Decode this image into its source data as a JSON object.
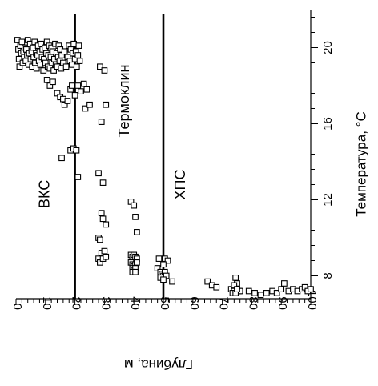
{
  "chart_data": {
    "type": "scatter",
    "orientation": "rotated",
    "xlabel": "Глубина, м",
    "ylabel": "Температура, °C",
    "x_range": [
      0,
      100
    ],
    "y_range": [
      6.8,
      22
    ],
    "x_ticks": [
      0,
      10,
      20,
      30,
      40,
      50,
      60,
      70,
      80,
      90,
      100
    ],
    "y_ticks": [
      8,
      12,
      16,
      20
    ],
    "y_axis_position": "right",
    "grid": false,
    "marker": "open-square",
    "colors": {
      "line": "#000000",
      "marker": "#000000",
      "background": "#ffffff"
    },
    "vertical_lines": [
      20,
      50
    ],
    "region_labels": [
      {
        "text": "ВКС",
        "x": 10,
        "y": 12.3
      },
      {
        "text": "Термоклин",
        "x": 37,
        "y": 17.2
      },
      {
        "text": "ХПС",
        "x": 56,
        "y": 12.8
      }
    ],
    "points": [
      [
        0.5,
        20.4
      ],
      [
        0.8,
        19.9
      ],
      [
        1.0,
        19.4
      ],
      [
        1.2,
        19.0
      ],
      [
        1.5,
        20.1
      ],
      [
        1.8,
        19.7
      ],
      [
        2.0,
        20.3
      ],
      [
        2.3,
        19.2
      ],
      [
        2.5,
        19.8
      ],
      [
        2.8,
        19.5
      ],
      [
        3.0,
        20.0
      ],
      [
        3.3,
        19.3
      ],
      [
        3.5,
        19.9
      ],
      [
        3.8,
        19.6
      ],
      [
        4.0,
        20.4
      ],
      [
        4.3,
        19.1
      ],
      [
        4.5,
        19.7
      ],
      [
        4.8,
        20.2
      ],
      [
        5.0,
        19.4
      ],
      [
        5.3,
        19.8
      ],
      [
        5.5,
        19.0
      ],
      [
        5.8,
        20.0
      ],
      [
        6.0,
        19.5
      ],
      [
        6.3,
        20.3
      ],
      [
        6.5,
        19.2
      ],
      [
        6.8,
        19.7
      ],
      [
        7.0,
        18.9
      ],
      [
        7.3,
        19.6
      ],
      [
        7.5,
        20.1
      ],
      [
        7.8,
        19.3
      ],
      [
        8.0,
        19.8
      ],
      [
        8.3,
        19.1
      ],
      [
        8.5,
        20.2
      ],
      [
        8.8,
        19.5
      ],
      [
        9.0,
        19.9
      ],
      [
        9.3,
        18.8
      ],
      [
        9.5,
        19.4
      ],
      [
        9.8,
        20.0
      ],
      [
        10.0,
        19.2
      ],
      [
        10.3,
        19.7
      ],
      [
        10.5,
        20.3
      ],
      [
        10.8,
        19.0
      ],
      [
        11.0,
        19.6
      ],
      [
        11.3,
        20.1
      ],
      [
        11.5,
        18.9
      ],
      [
        11.8,
        19.5
      ],
      [
        12.0,
        20.0
      ],
      [
        12.3,
        19.2
      ],
      [
        12.5,
        19.8
      ],
      [
        12.8,
        18.8
      ],
      [
        13.0,
        19.4
      ],
      [
        13.3,
        20.2
      ],
      [
        13.5,
        19.1
      ],
      [
        13.8,
        19.7
      ],
      [
        14.0,
        19.0
      ],
      [
        14.3,
        19.5
      ],
      [
        14.5,
        20.1
      ],
      [
        14.8,
        19.3
      ],
      [
        15.0,
        19.9
      ],
      [
        15.3,
        18.9
      ],
      [
        15.5,
        19.6
      ],
      [
        16.0,
        19.2
      ],
      [
        16.5,
        19.8
      ],
      [
        17.0,
        19.0
      ],
      [
        17.5,
        19.5
      ],
      [
        18.0,
        20.1
      ],
      [
        18.3,
        19.3
      ],
      [
        18.6,
        19.9
      ],
      [
        19.0,
        19.1
      ],
      [
        19.3,
        19.7
      ],
      [
        19.6,
        20.2
      ],
      [
        20.0,
        19.4
      ],
      [
        20.3,
        19.8
      ],
      [
        20.6,
        19.0
      ],
      [
        21.0,
        19.6
      ],
      [
        21.3,
        20.1
      ],
      [
        21.6,
        19.3
      ],
      [
        10.5,
        18.3
      ],
      [
        11.5,
        18.0
      ],
      [
        12.5,
        18.2
      ],
      [
        14.0,
        17.6
      ],
      [
        15.0,
        17.4
      ],
      [
        16.0,
        17.3
      ],
      [
        16.5,
        17.0
      ],
      [
        17.5,
        17.2
      ],
      [
        18.5,
        17.8
      ],
      [
        19.0,
        18.0
      ],
      [
        20.0,
        17.5
      ],
      [
        21.0,
        18.0
      ],
      [
        22.0,
        17.7
      ],
      [
        23.0,
        18.1
      ],
      [
        24.0,
        17.8
      ],
      [
        23.5,
        16.8
      ],
      [
        25.0,
        17.0
      ],
      [
        15.5,
        14.2
      ],
      [
        18.5,
        14.6
      ],
      [
        19.5,
        14.7
      ],
      [
        20.5,
        14.6
      ],
      [
        21.0,
        13.2
      ],
      [
        28.5,
        19.0
      ],
      [
        30.0,
        18.8
      ],
      [
        30.5,
        17.0
      ],
      [
        29.0,
        16.1
      ],
      [
        28.0,
        13.4
      ],
      [
        29.5,
        12.9
      ],
      [
        29.0,
        11.3
      ],
      [
        29.5,
        11.0
      ],
      [
        30.5,
        10.7
      ],
      [
        28.0,
        10.0
      ],
      [
        28.5,
        9.9
      ],
      [
        29.0,
        9.2
      ],
      [
        30.0,
        9.3
      ],
      [
        28.0,
        8.9
      ],
      [
        28.5,
        8.7
      ],
      [
        29.5,
        8.9
      ],
      [
        30.5,
        9.0
      ],
      [
        39.0,
        11.9
      ],
      [
        40.0,
        11.7
      ],
      [
        40.5,
        11.1
      ],
      [
        41.0,
        10.3
      ],
      [
        39.0,
        9.1
      ],
      [
        39.5,
        9.0
      ],
      [
        40.0,
        9.1
      ],
      [
        40.5,
        9.0
      ],
      [
        41.0,
        8.9
      ],
      [
        39.0,
        8.7
      ],
      [
        39.5,
        8.6
      ],
      [
        40.0,
        8.5
      ],
      [
        40.5,
        8.6
      ],
      [
        41.0,
        8.7
      ],
      [
        39.5,
        8.4
      ],
      [
        40.0,
        8.3
      ],
      [
        40.5,
        8.4
      ],
      [
        39.5,
        8.2
      ],
      [
        40.5,
        8.2
      ],
      [
        48.0,
        8.4
      ],
      [
        49.0,
        8.2
      ],
      [
        49.5,
        8.1
      ],
      [
        50.0,
        8.0
      ],
      [
        50.5,
        8.2
      ],
      [
        51.0,
        8.0
      ],
      [
        49.0,
        7.9
      ],
      [
        50.0,
        7.8
      ],
      [
        50.5,
        8.9
      ],
      [
        51.5,
        8.8
      ],
      [
        53.0,
        7.7
      ],
      [
        48.5,
        8.9
      ],
      [
        50.0,
        8.6
      ],
      [
        65.0,
        7.7
      ],
      [
        66.5,
        7.5
      ],
      [
        68.0,
        7.4
      ],
      [
        73.0,
        7.3
      ],
      [
        74.0,
        7.2
      ],
      [
        74.5,
        7.9
      ],
      [
        75.0,
        7.6
      ],
      [
        74.0,
        7.5
      ],
      [
        75.5,
        7.2
      ],
      [
        76.0,
        7.2
      ],
      [
        73.5,
        7.1
      ],
      [
        74.5,
        7.1
      ],
      [
        75.0,
        7.3
      ],
      [
        79.0,
        7.2
      ],
      [
        81.0,
        7.1
      ],
      [
        83.0,
        7.0
      ],
      [
        85.0,
        7.1
      ],
      [
        87.0,
        7.2
      ],
      [
        88.5,
        7.1
      ],
      [
        90.0,
        7.3
      ],
      [
        91.0,
        7.6
      ],
      [
        92.5,
        7.2
      ],
      [
        94.0,
        7.3
      ],
      [
        95.5,
        7.2
      ],
      [
        97.0,
        7.3
      ],
      [
        98.0,
        7.4
      ],
      [
        99.0,
        7.2
      ],
      [
        100.0,
        7.3
      ]
    ]
  }
}
